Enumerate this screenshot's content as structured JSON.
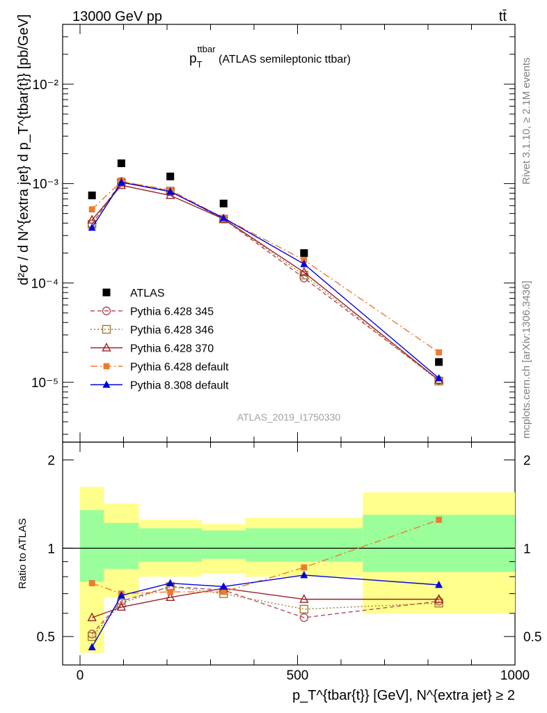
{
  "header": {
    "beam": "13000 GeV pp",
    "process": "tt̄"
  },
  "side_labels": {
    "rivet": "Rivet 3.1.10, ≥ 2.1M events",
    "mcplots": "mcplots.cern.ch [arXiv:1306.3436]"
  },
  "main_plot": {
    "title_main": "p",
    "title_sub": "T",
    "title_sup": "ttbar",
    "title_rest": " (ATLAS semileptonic ttbar)",
    "ylabel": "d²σ / d N^{extra jet} d p_T^{tbar{t}} [pb/GeV]",
    "analysis_id": "ATLAS_2019_I1750330",
    "y_ticks": [
      "10⁻²",
      "10⁻³",
      "10⁻⁴",
      "10⁻⁵"
    ]
  },
  "ratio_plot": {
    "ylabel": "Ratio to ATLAS",
    "y_ticks": [
      "0.5",
      "1",
      "2"
    ]
  },
  "xaxis": {
    "label": "p_T^{tbar{t}} [GeV], N^{extra jet} ≥ 2",
    "ticks": [
      "0",
      "500",
      "1000"
    ]
  },
  "chart_data": {
    "type": "scatter",
    "x_scale": "linear",
    "xlim": [
      -40,
      1000
    ],
    "main": {
      "y_scale": "log",
      "ylim": [
        2.5e-06,
        0.04
      ],
      "ylabel": "d²σ / d N^{extra jet} d p_T^{tbar{t}} [pb/GeV]"
    },
    "ratio": {
      "y_scale": "log",
      "ylim": [
        0.4,
        2.3
      ],
      "ylabel": "Ratio to ATLAS"
    },
    "legend": "upper-left",
    "x": [
      27.5,
      95,
      207.5,
      330,
      515,
      825
    ],
    "bin_edges": [
      0,
      55,
      135,
      280,
      380,
      650,
      1000
    ],
    "band_inner": [
      [
        0.77,
        1.35
      ],
      [
        0.85,
        1.22
      ],
      [
        0.9,
        1.17
      ],
      [
        0.92,
        1.15
      ],
      [
        0.9,
        1.17
      ],
      [
        0.83,
        1.3
      ],
      [
        0.83,
        1.3
      ]
    ],
    "band_outer": [
      [
        0.44,
        1.62
      ],
      [
        0.68,
        1.42
      ],
      [
        0.8,
        1.25
      ],
      [
        0.82,
        1.21
      ],
      [
        0.8,
        1.27
      ],
      [
        0.6,
        1.55
      ],
      [
        0.6,
        1.55
      ]
    ],
    "series": [
      {
        "name": "ATLAS",
        "style": "data",
        "color": "#000000",
        "values": [
          0.00076,
          0.0016,
          0.00118,
          0.00063,
          0.0002,
          1.6e-05
        ]
      },
      {
        "name": "Pythia 6.428 345",
        "style": "open-circle dashed",
        "color": "#b24b5c",
        "values": [
          0.00039,
          0.00105,
          0.00084,
          0.00044,
          0.000112,
          1.05e-05
        ],
        "ratio": [
          0.51,
          0.66,
          0.74,
          0.72,
          0.58,
          0.66
        ]
      },
      {
        "name": "Pythia 6.428 346",
        "style": "open-square dotted",
        "color": "#a07a2c",
        "values": [
          0.00039,
          0.00103,
          0.00084,
          0.00044,
          0.00012,
          1.03e-05
        ],
        "ratio": [
          0.5,
          0.65,
          0.74,
          0.7,
          0.62,
          0.65
        ]
      },
      {
        "name": "Pythia 6.428 370",
        "style": "open-triangle solid",
        "color": "#9a1f2a",
        "values": [
          0.00043,
          0.00096,
          0.00076,
          0.00044,
          0.000128,
          1.05e-05
        ],
        "ratio": [
          0.58,
          0.63,
          0.68,
          0.73,
          0.67,
          0.67
        ]
      },
      {
        "name": "Pythia 6.428 default",
        "style": "filled-square dashdot",
        "color": "#f2782c",
        "values": [
          0.00055,
          0.00105,
          0.00086,
          0.00045,
          0.00017,
          2e-05
        ],
        "ratio": [
          0.76,
          0.7,
          0.71,
          0.71,
          0.86,
          1.25
        ]
      },
      {
        "name": "Pythia 8.308 default",
        "style": "filled-triangle solid",
        "color": "#0000dd",
        "values": [
          0.00036,
          0.00103,
          0.00083,
          0.00045,
          0.000155,
          1.1e-05
        ],
        "ratio": [
          0.46,
          0.69,
          0.76,
          0.74,
          0.81,
          0.75
        ]
      }
    ]
  }
}
